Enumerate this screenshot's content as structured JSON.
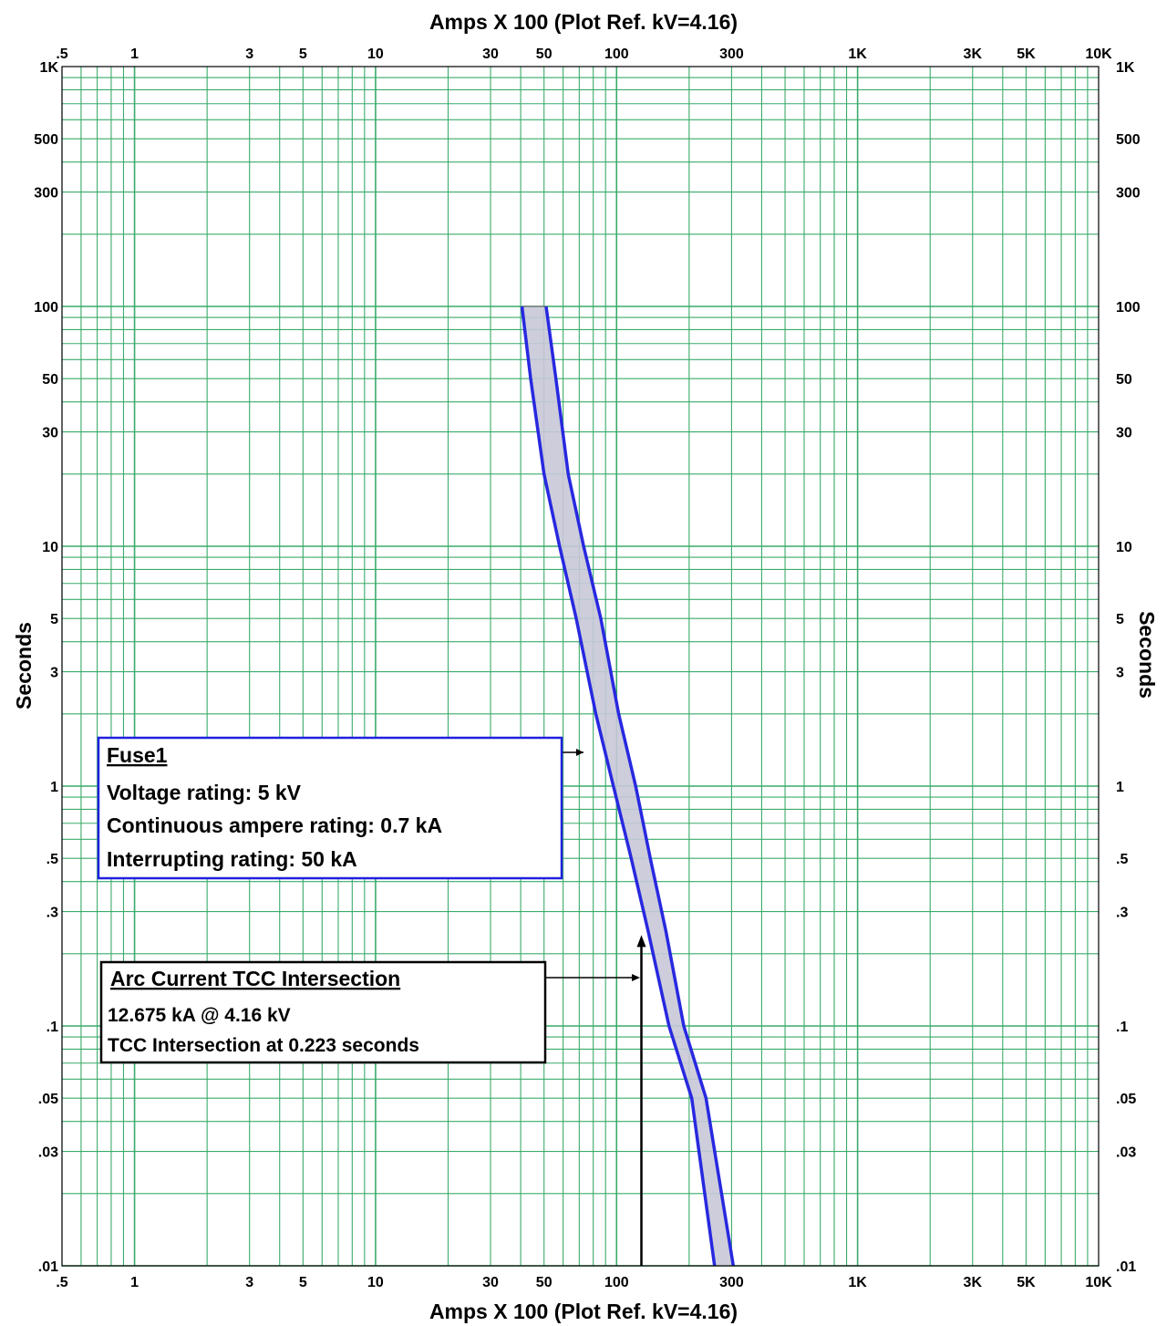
{
  "chart_data": {
    "type": "line",
    "title": "",
    "xlabel": "Amps  X  100 (Plot Ref. kV=4.16)",
    "ylabel": "Seconds",
    "x_scale": "log",
    "y_scale": "log",
    "xlim": [
      0.5,
      10000
    ],
    "ylim": [
      0.01,
      1000
    ],
    "grid": true,
    "legend": "none",
    "x_ticks": [
      {
        "value": 0.5,
        "label": ".5"
      },
      {
        "value": 1,
        "label": "1"
      },
      {
        "value": 3,
        "label": "3"
      },
      {
        "value": 5,
        "label": "5"
      },
      {
        "value": 10,
        "label": "10"
      },
      {
        "value": 30,
        "label": "30"
      },
      {
        "value": 50,
        "label": "50"
      },
      {
        "value": 100,
        "label": "100"
      },
      {
        "value": 300,
        "label": "300"
      },
      {
        "value": 1000,
        "label": "1K"
      },
      {
        "value": 3000,
        "label": "3K"
      },
      {
        "value": 5000,
        "label": "5K"
      },
      {
        "value": 10000,
        "label": "10K"
      }
    ],
    "y_ticks": [
      {
        "value": 0.01,
        "label": ".01"
      },
      {
        "value": 0.03,
        "label": ".03"
      },
      {
        "value": 0.05,
        "label": ".05"
      },
      {
        "value": 0.1,
        "label": ".1"
      },
      {
        "value": 0.3,
        "label": ".3"
      },
      {
        "value": 0.5,
        "label": ".5"
      },
      {
        "value": 1,
        "label": "1"
      },
      {
        "value": 3,
        "label": "3"
      },
      {
        "value": 5,
        "label": "5"
      },
      {
        "value": 10,
        "label": "10"
      },
      {
        "value": 30,
        "label": "30"
      },
      {
        "value": 50,
        "label": "50"
      },
      {
        "value": 100,
        "label": "100"
      },
      {
        "value": 300,
        "label": "300"
      },
      {
        "value": 500,
        "label": "500"
      },
      {
        "value": 1000,
        "label": "1K"
      }
    ],
    "series": [
      {
        "color": "#2828e0",
        "x": [
          40.5,
          44,
          50,
          58,
          68,
          82,
          97,
          115,
          135,
          165,
          205,
          255
        ],
        "y": [
          100,
          50,
          20,
          10,
          5,
          2,
          1,
          0.5,
          0.25,
          0.1,
          0.05,
          0.01
        ]
      },
      {
        "color": "#2828e0",
        "x": [
          51,
          56,
          63,
          73,
          86,
          102,
          120,
          138,
          160,
          190,
          235,
          305
        ],
        "y": [
          100,
          50,
          20,
          10,
          5,
          2,
          1,
          0.5,
          0.25,
          0.1,
          0.05,
          0.01
        ]
      }
    ],
    "band_fill": "#c8c8d8",
    "grid_color": "#3aab6a",
    "arc_current": {
      "x": 126.75,
      "y": 0.223,
      "color": "#000000"
    },
    "annotations": {
      "fuse_box": {
        "title": "Fuse1",
        "lines": [
          "Voltage rating: 5 kV",
          "Continuous ampere rating: 0.7 kA",
          "Interrupting rating: 50 kA"
        ],
        "border_color": "#2020e0"
      },
      "arc_box": {
        "title": "Arc Current TCC Intersection",
        "lines": [
          "12.675 kA @ 4.16 kV",
          "TCC Intersection at 0.223 seconds"
        ],
        "border_color": "#000000"
      }
    }
  }
}
